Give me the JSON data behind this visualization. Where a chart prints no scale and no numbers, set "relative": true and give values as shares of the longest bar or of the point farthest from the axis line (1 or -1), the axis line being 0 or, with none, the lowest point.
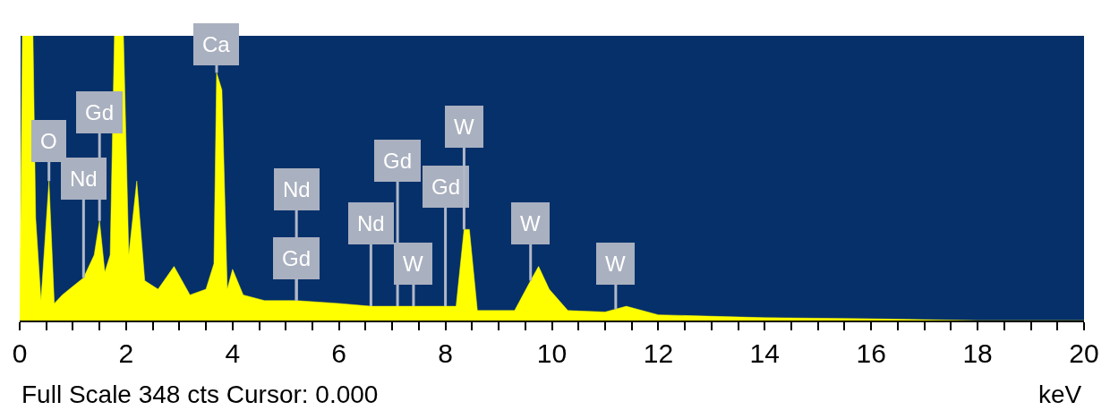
{
  "chart_data": {
    "type": "area",
    "relative": true,
    "xlabel": "keV",
    "x": [
      0,
      0.05,
      0.25,
      0.3,
      0.4,
      0.55,
      0.65,
      0.8,
      1.0,
      1.2,
      1.4,
      1.5,
      1.6,
      1.7,
      1.78,
      1.95,
      2.05,
      2.2,
      2.35,
      2.6,
      2.9,
      3.2,
      3.5,
      3.65,
      3.7,
      3.8,
      3.9,
      4.0,
      4.2,
      4.6,
      5.2,
      6,
      6.6,
      7.1,
      7.4,
      8.0,
      8.2,
      8.35,
      8.45,
      8.6,
      9.3,
      9.6,
      9.75,
      9.95,
      10.3,
      11.0,
      11.2,
      11.4,
      12,
      14,
      16,
      18,
      20
    ],
    "series": [
      {
        "color": "#ffff00",
        "values": [
          0,
          1,
          1,
          0.36,
          0.07,
          0.49,
          0.06,
          0.09,
          0.12,
          0.15,
          0.23,
          0.35,
          0.17,
          0.23,
          1,
          1,
          0.23,
          0.49,
          0.14,
          0.11,
          0.19,
          0.09,
          0.11,
          0.2,
          0.87,
          0.81,
          0.11,
          0.18,
          0.09,
          0.07,
          0.07,
          0.06,
          0.05,
          0.05,
          0.05,
          0.05,
          0.05,
          0.32,
          0.32,
          0.035,
          0.035,
          0.14,
          0.19,
          0.11,
          0.035,
          0.03,
          0.04,
          0.05,
          0.02,
          0.01,
          0.006,
          0,
          0
        ]
      }
    ],
    "xlim": [
      0,
      20
    ],
    "xticks": [
      0,
      {
        "value": 0.5,
        "label": null
      },
      {
        "value": 1,
        "label": null
      },
      {
        "value": 1.5,
        "label": null
      },
      2,
      {
        "value": 2.5,
        "label": null
      },
      {
        "value": 3,
        "label": null
      },
      {
        "value": 3.5,
        "label": null
      },
      4,
      {
        "value": 4.5,
        "label": null
      },
      {
        "value": 5,
        "label": null
      },
      {
        "value": 5.5,
        "label": null
      },
      6,
      {
        "value": 6.5,
        "label": null
      },
      {
        "value": 7,
        "label": null
      },
      {
        "value": 7.5,
        "label": null
      },
      8,
      {
        "value": 8.5,
        "label": null
      },
      {
        "value": 9,
        "label": null
      },
      {
        "value": 9.5,
        "label": null
      },
      10,
      {
        "value": 10.5,
        "label": null
      },
      {
        "value": 11,
        "label": null
      },
      {
        "value": 11.5,
        "label": null
      },
      12,
      {
        "value": 12.5,
        "label": null
      },
      {
        "value": 13,
        "label": null
      },
      {
        "value": 13.5,
        "label": null
      },
      14,
      {
        "value": 14.5,
        "label": null
      },
      {
        "value": 15,
        "label": null
      },
      {
        "value": 15.5,
        "label": null
      },
      16,
      {
        "value": 16.5,
        "label": null
      },
      {
        "value": 17,
        "label": null
      },
      {
        "value": 17.5,
        "label": null
      },
      18,
      {
        "value": 18.5,
        "label": null
      },
      {
        "value": 19,
        "label": null
      },
      {
        "value": 19.5,
        "label": null
      },
      20
    ],
    "grid": false,
    "legend": false,
    "annotations": [
      {
        "text": "O",
        "x": 0.55,
        "y": 0.49
      },
      {
        "text": "Gd",
        "x": 1.5,
        "y": 0.35
      },
      {
        "text": "Nd",
        "x": 1.2,
        "y": 0.15
      },
      {
        "text": "Ca",
        "x": 3.7,
        "y": 0.87
      },
      {
        "text": "Nd",
        "x": 5.2,
        "y": 0.07
      },
      {
        "text": "Gd",
        "x": 5.2,
        "y": 0.07
      },
      {
        "text": "Nd",
        "x": 6.6,
        "y": 0.05
      },
      {
        "text": "Gd",
        "x": 7.1,
        "y": 0.05
      },
      {
        "text": "W",
        "x": 7.4,
        "y": 0.05
      },
      {
        "text": "Gd",
        "x": 8.0,
        "y": 0.05
      },
      {
        "text": "W",
        "x": 8.35,
        "y": 0.32
      },
      {
        "text": "W",
        "x": 9.6,
        "y": 0.14
      },
      {
        "text": "W",
        "x": 11.2,
        "y": 0.04
      },
      "Full Scale 348 cts Cursor: 0.000"
    ]
  }
}
